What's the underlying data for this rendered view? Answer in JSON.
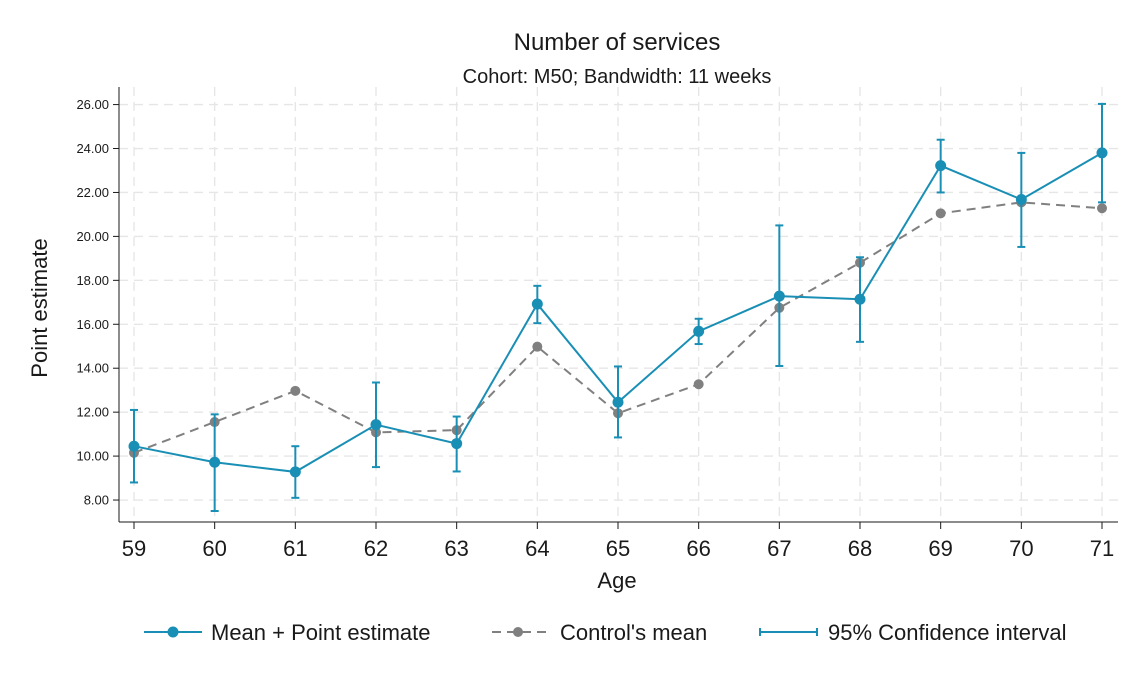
{
  "chart_data": {
    "type": "line",
    "title": "Number of services",
    "subtitle": "Cohort: M50; Bandwidth: 11 weeks",
    "xlabel": "Age",
    "ylabel": "Point estimate",
    "x": [
      59,
      60,
      61,
      62,
      63,
      64,
      65,
      66,
      67,
      68,
      69,
      70,
      71
    ],
    "x_tick_labels": [
      "59",
      "60",
      "61",
      "62",
      "63",
      "64",
      "65",
      "66",
      "67",
      "68",
      "69",
      "70",
      "71"
    ],
    "y_ticks": [
      8,
      10,
      12,
      14,
      16,
      18,
      20,
      22,
      24,
      26
    ],
    "y_tick_labels": [
      "8.00",
      "10.00",
      "12.00",
      "14.00",
      "16.00",
      "18.00",
      "20.00",
      "22.00",
      "24.00",
      "26.00"
    ],
    "xlim": [
      59,
      71
    ],
    "ylim": [
      7.0,
      26.8
    ],
    "grid": true,
    "legend_position": "bottom",
    "series": [
      {
        "name": "Mean + Point estimate",
        "style": "solid-with-dots",
        "color": "#1a8fb5",
        "values": [
          10.45,
          9.72,
          9.28,
          11.43,
          10.57,
          16.92,
          12.45,
          15.68,
          17.28,
          17.14,
          23.22,
          21.68,
          23.8
        ]
      },
      {
        "name": "Control's mean",
        "style": "dashed-with-dots",
        "color": "#808080",
        "values": [
          10.15,
          11.55,
          12.97,
          11.08,
          11.18,
          14.98,
          11.95,
          13.27,
          16.75,
          18.8,
          21.05,
          21.55,
          21.28
        ]
      },
      {
        "name": "95% Confidence interval",
        "style": "errorbar",
        "color": "#1a8fb5",
        "lower": [
          8.8,
          7.5,
          8.1,
          9.5,
          9.3,
          16.05,
          10.85,
          15.1,
          14.1,
          15.2,
          22.0,
          19.52,
          21.55
        ],
        "upper": [
          12.1,
          11.9,
          10.45,
          13.35,
          11.8,
          17.75,
          14.08,
          16.25,
          20.5,
          19.05,
          24.4,
          23.8,
          26.03
        ]
      }
    ]
  }
}
